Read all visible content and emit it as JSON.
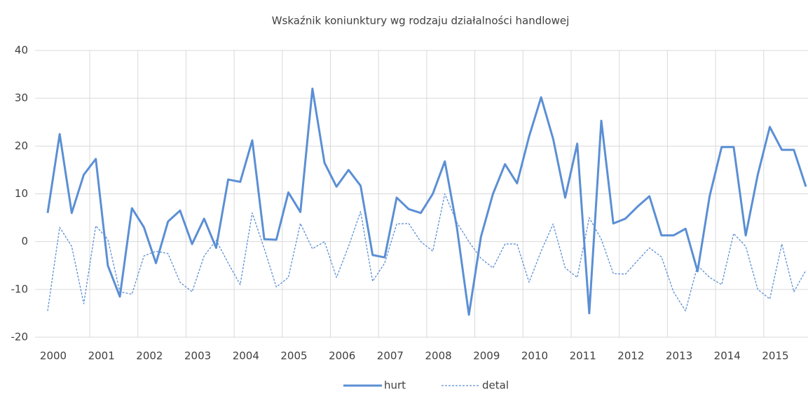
{
  "chart_data": {
    "type": "line",
    "title": "Wskaźnik koniunktury wg rodzaju działalności handlowej",
    "categories": [
      "2000",
      null,
      null,
      null,
      "2001",
      null,
      null,
      null,
      "2002",
      null,
      null,
      null,
      "2003",
      null,
      null,
      null,
      "2004",
      null,
      null,
      null,
      "2005",
      null,
      null,
      null,
      "2006",
      null,
      null,
      null,
      "2007",
      null,
      null,
      null,
      "2008",
      null,
      null,
      null,
      "2009",
      null,
      null,
      null,
      "2010",
      null,
      null,
      null,
      "2011",
      null,
      null,
      null,
      "2012",
      null,
      null,
      null,
      "2013",
      null,
      null,
      null,
      "2014",
      null,
      null,
      null,
      "2015",
      null,
      null,
      null
    ],
    "series": [
      {
        "name": "hurt",
        "color": "#5b8fd4",
        "values": [
          6,
          22.5,
          6,
          14,
          17.3,
          -5,
          -11.5,
          7,
          3,
          -4.5,
          4.2,
          6.5,
          -0.5,
          4.8,
          -1.3,
          13,
          12.5,
          21.2,
          0.5,
          0.4,
          10.3,
          6.2,
          32,
          16.5,
          11.5,
          15,
          11.7,
          -2.8,
          -3.3,
          9.2,
          6.8,
          6,
          10,
          16.8,
          3,
          -15.3,
          1,
          10,
          16.2,
          12.2,
          22,
          30.2,
          21.5,
          9.2,
          20.5,
          -15,
          25.3,
          3.8,
          4.8,
          7.3,
          9.5,
          1.3,
          1.3,
          2.7,
          -6.2,
          9.5,
          19.8,
          19.8,
          1.3,
          14,
          24,
          19.2,
          19.2,
          11.5
        ]
      },
      {
        "name": "detal",
        "color": "#5b8fd4",
        "dashed": true,
        "values": [
          -14.5,
          3,
          -1,
          -13,
          3.3,
          0.5,
          -10.5,
          -11,
          -3,
          -2,
          -2.5,
          -8.5,
          -10.5,
          -3,
          0.3,
          -4.5,
          -9,
          6,
          -1.5,
          -9.5,
          -7.5,
          3.8,
          -1.5,
          0,
          -7.5,
          -1,
          6.3,
          -8.3,
          -4.5,
          3.7,
          3.8,
          0,
          -2,
          10,
          4,
          0,
          -3.5,
          -5.5,
          -0.5,
          -0.5,
          -8.5,
          -2,
          3.7,
          -5.5,
          -7.5,
          5,
          0.5,
          -6.7,
          -6.8,
          -4,
          -1.3,
          -3.2,
          -10.5,
          -14.5,
          -5,
          -7.5,
          -9,
          1.7,
          -1,
          -10,
          -12,
          -0.5,
          -10.5,
          -6
        ]
      }
    ],
    "ylim": [
      -20,
      40
    ],
    "yticks": [
      -20,
      -10,
      0,
      10,
      20,
      30,
      40
    ],
    "grid": true,
    "legend": "bottom"
  }
}
